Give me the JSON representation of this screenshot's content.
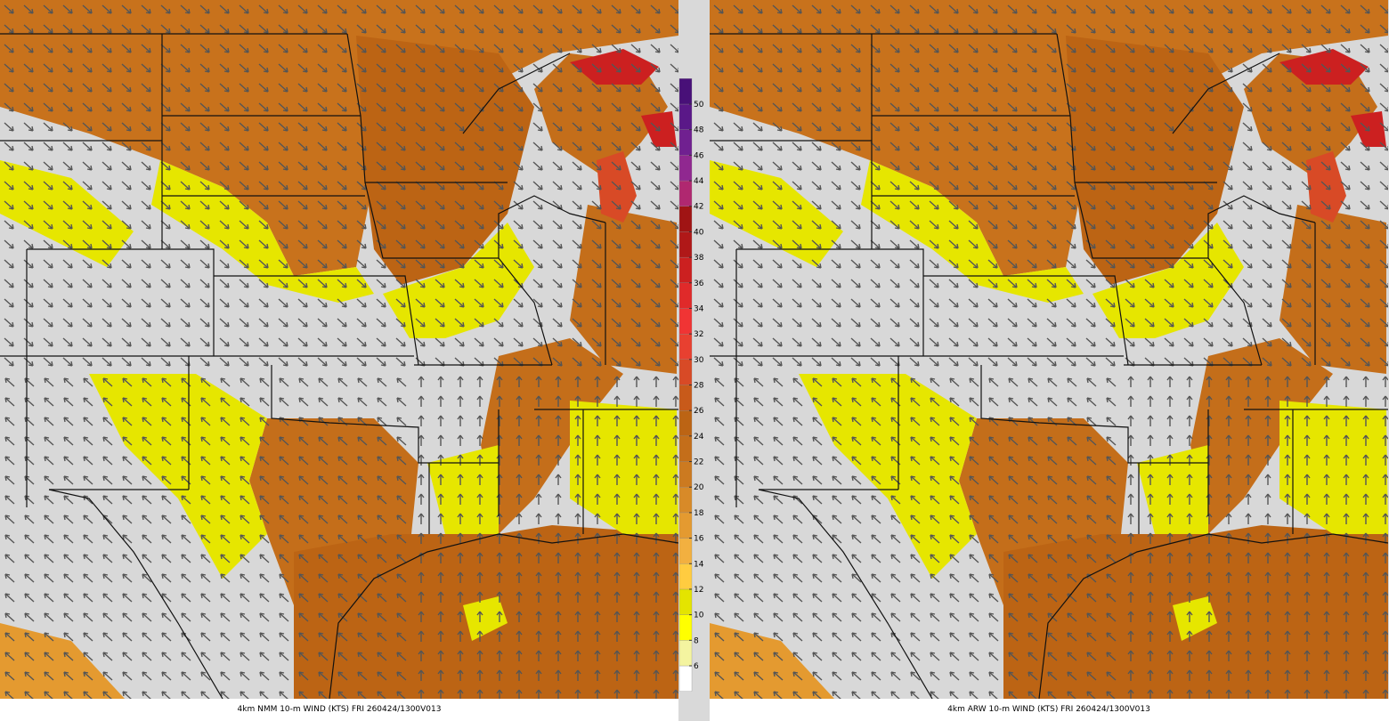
{
  "panels": [
    {
      "caption": "4km NMM 10-m WIND (KTS) FRI 260424/1300V013"
    },
    {
      "caption": "4km ARW 10-m WIND (KTS) FRI 260424/1300V013"
    }
  ],
  "colorbar": {
    "levels": [
      6,
      8,
      10,
      12,
      14,
      16,
      18,
      20,
      22,
      24,
      26,
      28,
      30,
      32,
      34,
      36,
      38,
      40,
      42,
      44,
      46,
      48,
      50
    ],
    "colors": [
      "#ffffff",
      "#f4f4a0",
      "#ffff00",
      "#e4e400",
      "#ffcc40",
      "#f2b040",
      "#e49a30",
      "#d88a28",
      "#cc7a20",
      "#c46e1a",
      "#bc6414",
      "#c85a1a",
      "#d84a26",
      "#e84030",
      "#f03434",
      "#e02a2a",
      "#cc2020",
      "#b01818",
      "#a01414",
      "#b02870",
      "#902890",
      "#702090",
      "#5a1888",
      "#481078"
    ]
  }
}
